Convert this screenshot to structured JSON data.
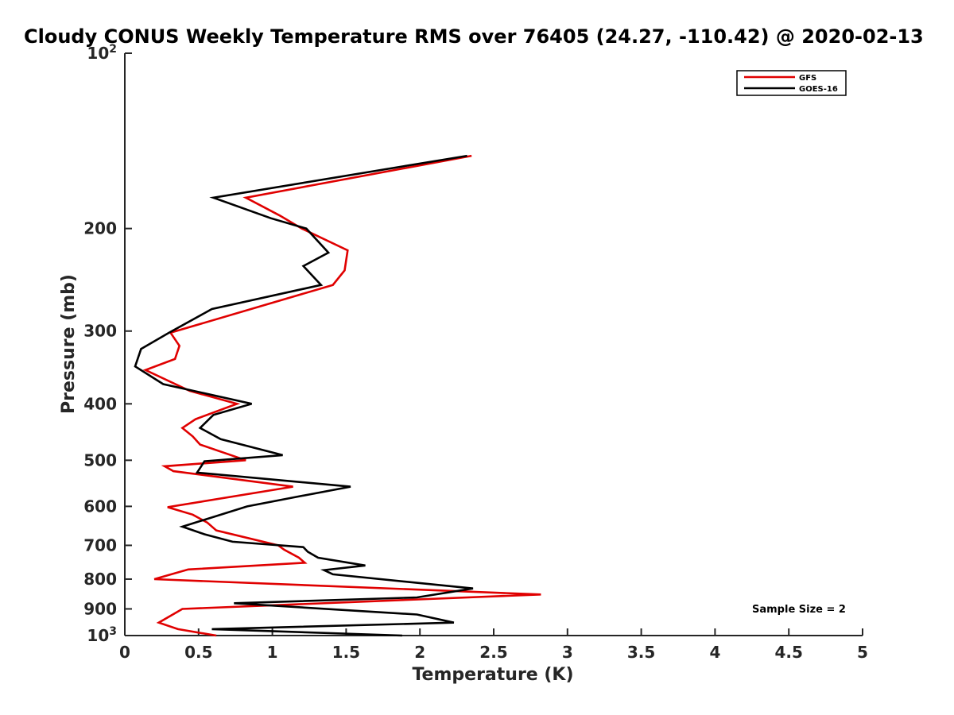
{
  "chart_data": {
    "type": "line",
    "title": "Cloudy CONUS Weekly Temperature RMS over 76405 (24.27, -110.42) @ 2020-02-13",
    "xlabel": "Temperature (K)",
    "ylabel": "Pressure (mb)",
    "xlim": [
      0,
      5
    ],
    "ylim": [
      100,
      1000
    ],
    "y_scale": "log",
    "y_reversed": true,
    "grid": false,
    "legend_position": "top-right",
    "x_ticks": [
      0,
      0.5,
      1,
      1.5,
      2,
      2.5,
      3,
      3.5,
      4,
      4.5,
      5
    ],
    "x_tick_labels": [
      "0",
      "0.5",
      "1",
      "1.5",
      "2",
      "2.5",
      "3",
      "3.5",
      "4",
      "4.5",
      "5"
    ],
    "y_ticks": [
      {
        "value": 100,
        "label": "10",
        "sup": "2"
      },
      {
        "value": 200,
        "label": "200",
        "sup": ""
      },
      {
        "value": 300,
        "label": "300",
        "sup": ""
      },
      {
        "value": 400,
        "label": "400",
        "sup": ""
      },
      {
        "value": 500,
        "label": "500",
        "sup": ""
      },
      {
        "value": 600,
        "label": "600",
        "sup": ""
      },
      {
        "value": 700,
        "label": "700",
        "sup": ""
      },
      {
        "value": 800,
        "label": "800",
        "sup": ""
      },
      {
        "value": 900,
        "label": "900",
        "sup": ""
      },
      {
        "value": 1000,
        "label": "10",
        "sup": "3"
      }
    ],
    "series": [
      {
        "name": "GFS",
        "color": "#e00000",
        "x": [
          2.35,
          0.82,
          1.05,
          1.2,
          1.51,
          1.49,
          1.41,
          0.31,
          0.37,
          0.34,
          0.14,
          0.44,
          0.76,
          0.48,
          0.39,
          0.46,
          0.51,
          0.82,
          0.27,
          0.33,
          1.14,
          0.29,
          0.46,
          0.56,
          0.62,
          1.04,
          1.08,
          1.18,
          1.22,
          0.43,
          0.2,
          2.82,
          0.39,
          0.23,
          0.36,
          0.62
        ],
        "y": [
          150,
          177,
          190,
          200,
          218,
          236,
          250,
          302,
          318,
          335,
          350,
          380,
          400,
          425,
          440,
          455,
          470,
          500,
          512,
          522,
          555,
          602,
          620,
          640,
          660,
          700,
          712,
          735,
          750,
          770,
          800,
          850,
          900,
          950,
          975,
          1000
        ]
      },
      {
        "name": "GOES-16",
        "color": "#000000",
        "x": [
          2.32,
          0.6,
          0.99,
          1.23,
          1.38,
          1.21,
          1.33,
          0.59,
          0.3,
          0.11,
          0.07,
          0.26,
          0.86,
          0.6,
          0.51,
          0.65,
          1.07,
          0.54,
          0.49,
          1.53,
          1.13,
          0.83,
          0.39,
          0.54,
          0.73,
          1.21,
          1.24,
          1.31,
          1.63,
          1.35,
          1.41,
          2.36,
          1.98,
          0.74,
          1.98,
          2.23,
          0.59,
          1.88
        ],
        "y": [
          150,
          177,
          192,
          200,
          220,
          232,
          250,
          275,
          302,
          322,
          345,
          370,
          400,
          418,
          440,
          460,
          490,
          502,
          525,
          555,
          580,
          600,
          650,
          670,
          690,
          705,
          718,
          735,
          758,
          772,
          785,
          830,
          860,
          880,
          920,
          950,
          975,
          1000
        ]
      }
    ],
    "annotation": "Sample Size = 2"
  }
}
